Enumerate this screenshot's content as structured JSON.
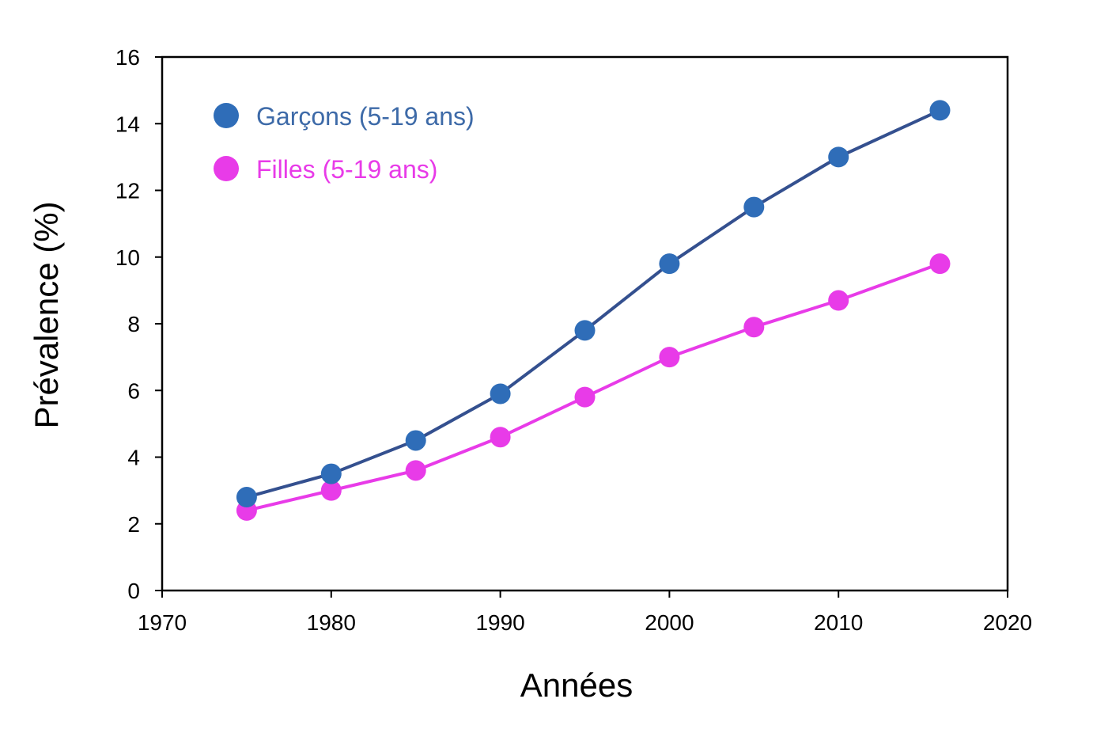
{
  "chart_data": {
    "type": "line",
    "title": "",
    "xlabel": "Années",
    "ylabel": "Prévalence (%)",
    "xlim": [
      1970,
      2020
    ],
    "ylim": [
      0,
      16
    ],
    "xticks": [
      "1970",
      "1980",
      "1990",
      "2000",
      "2010",
      "2020"
    ],
    "yticks": [
      "0",
      "2",
      "4",
      "6",
      "8",
      "10",
      "12",
      "14",
      "16"
    ],
    "grid": false,
    "legend_position": "top-left",
    "series": [
      {
        "name": "Garçons (5-19 ans)",
        "line_color": "#34508f",
        "marker_color": "#2f6db8",
        "label_color": "#3d6aa8",
        "x": [
          1975,
          1980,
          1985,
          1990,
          1995,
          2000,
          2005,
          2010,
          2016
        ],
        "y": [
          2.8,
          3.5,
          4.5,
          5.9,
          7.8,
          9.8,
          11.5,
          13.0,
          14.4
        ]
      },
      {
        "name": "Filles (5-19 ans)",
        "line_color": "#e83be8",
        "marker_color": "#e83be8",
        "label_color": "#e83be8",
        "x": [
          1975,
          1980,
          1985,
          1990,
          1995,
          2000,
          2005,
          2010,
          2016
        ],
        "y": [
          2.4,
          3.0,
          3.6,
          4.6,
          5.8,
          7.0,
          7.9,
          8.7,
          9.8
        ]
      }
    ]
  }
}
